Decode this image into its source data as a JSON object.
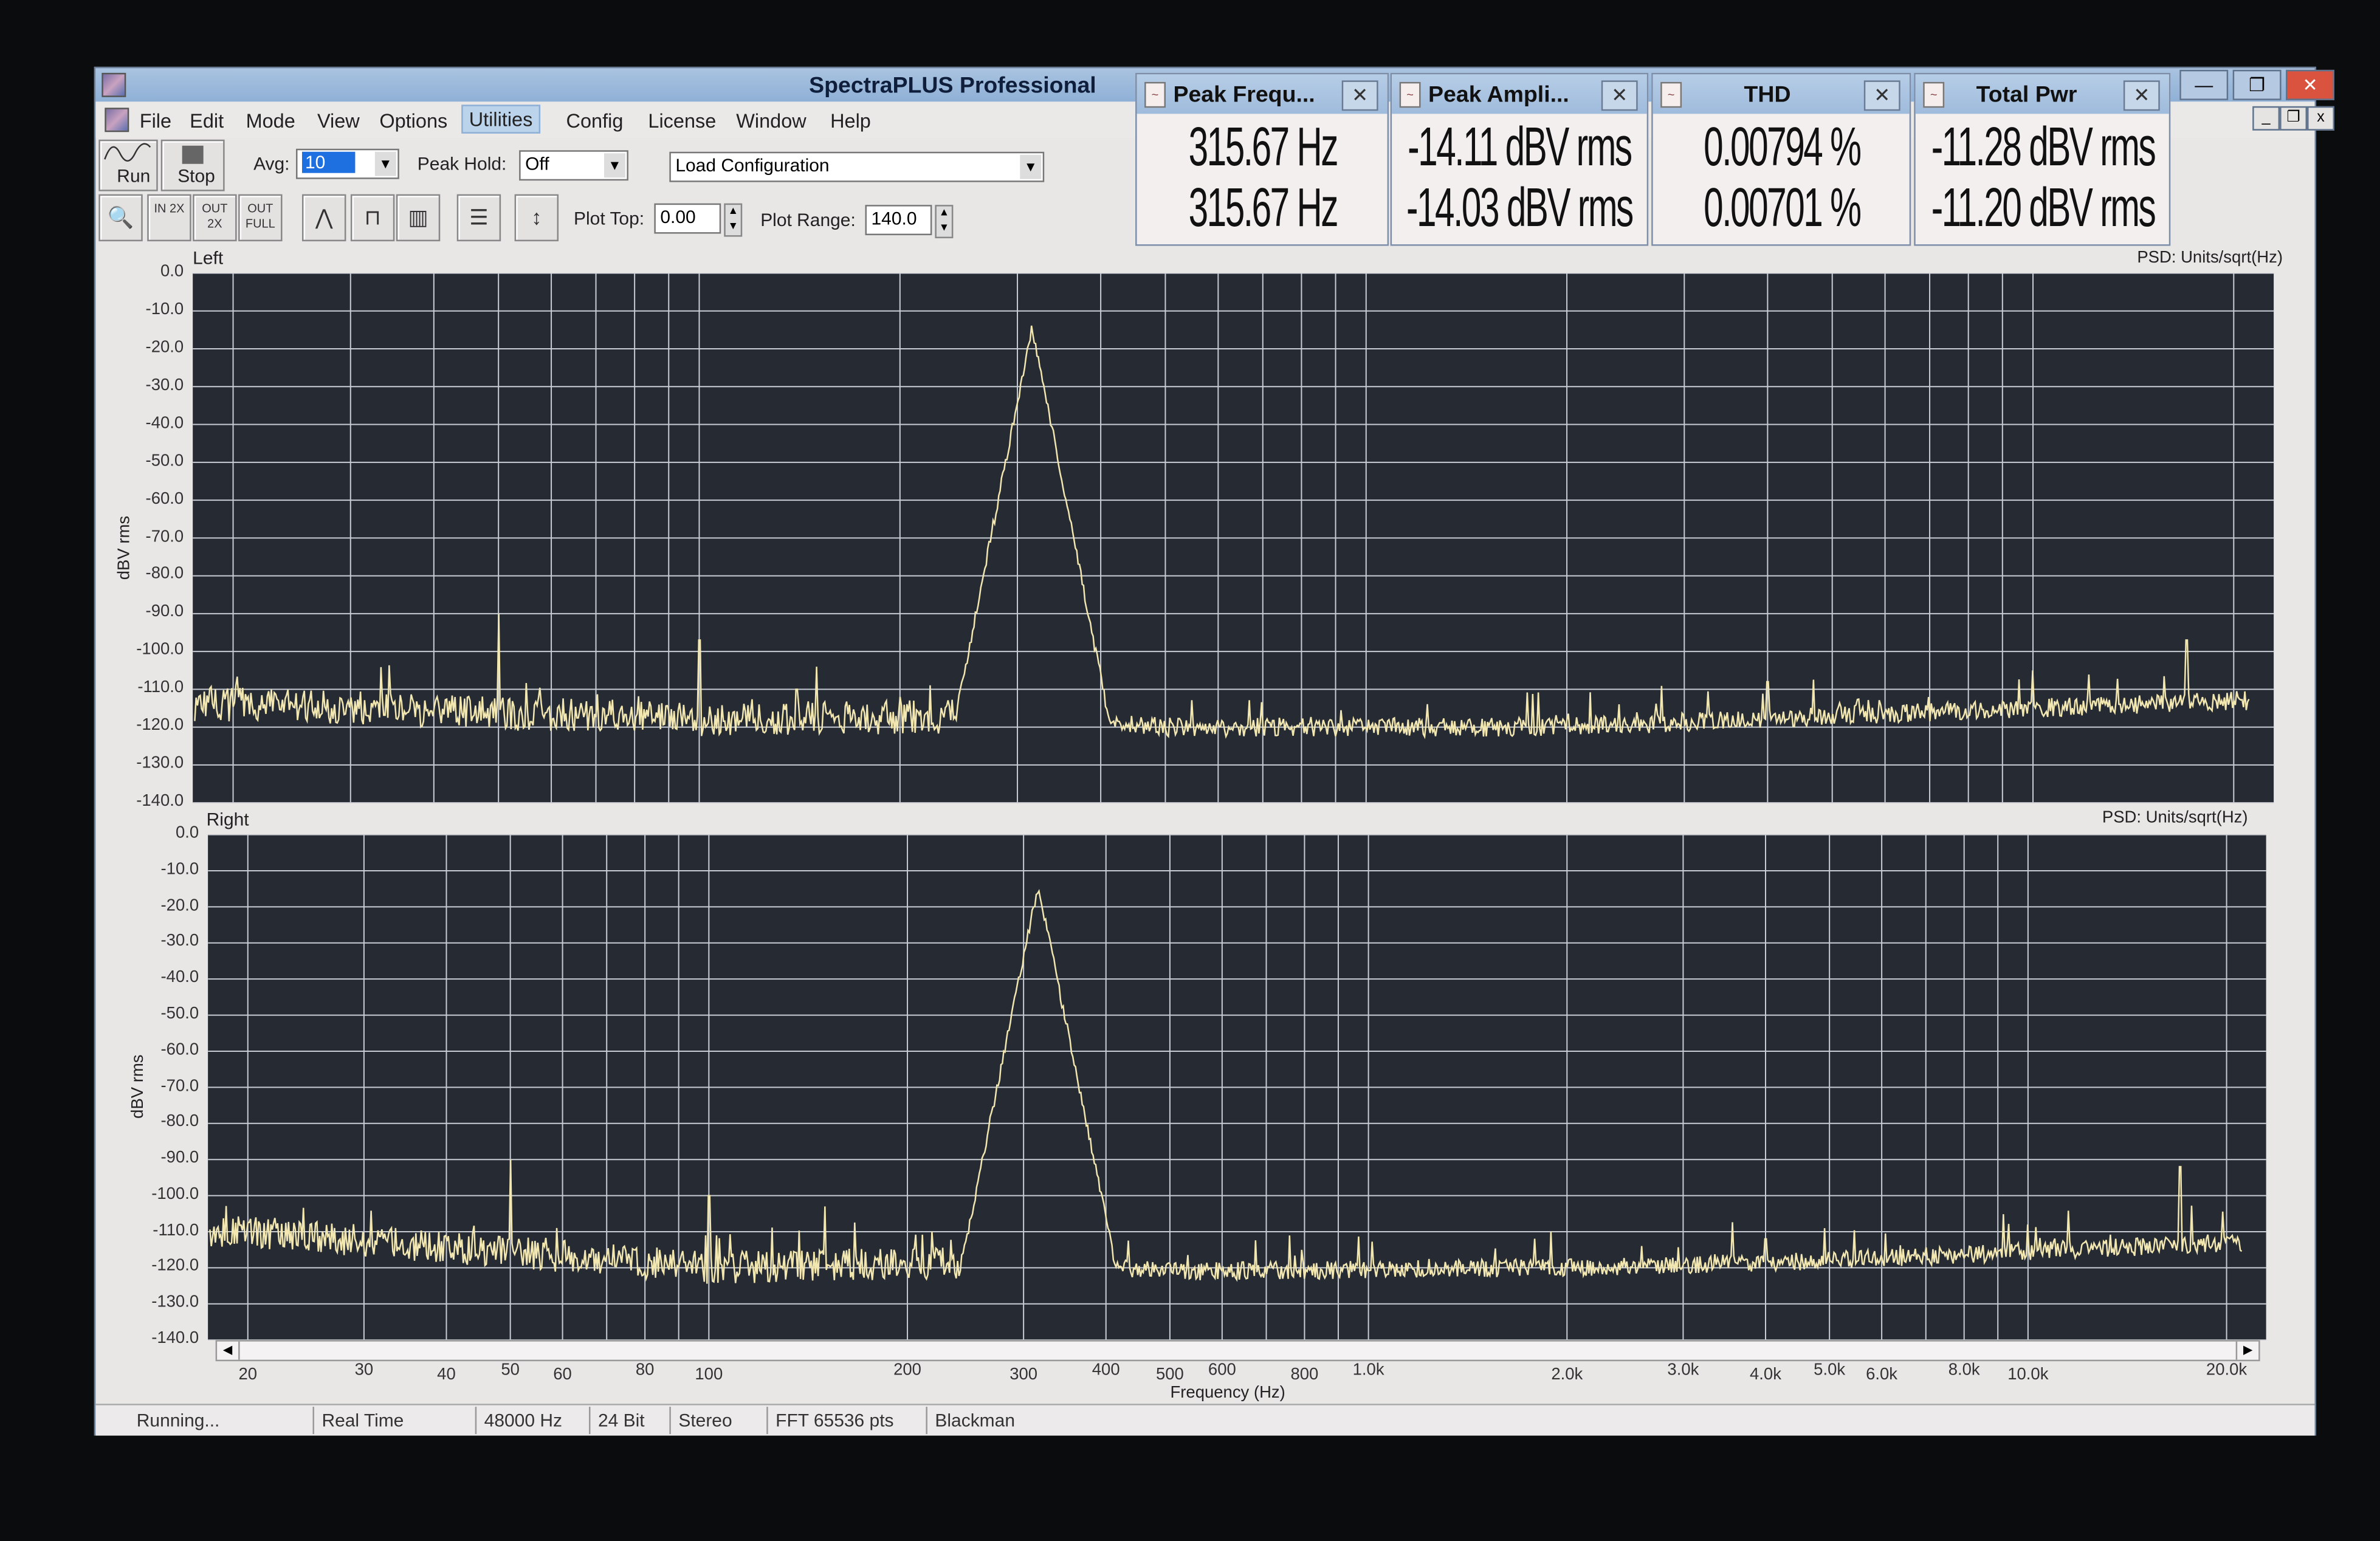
{
  "app": {
    "title": "SpectraPLUS Professional"
  },
  "menu": [
    "File",
    "Edit",
    "Mode",
    "View",
    "Options",
    "Utilities",
    "Config",
    "License",
    "Window",
    "Help"
  ],
  "menu_highlighted": "Utilities",
  "toolbar": {
    "run_label": "Run",
    "stop_label": "Stop",
    "avg_label": "Avg:",
    "avg_value": "10",
    "peak_hold_label": "Peak Hold:",
    "peak_hold_value": "Off",
    "config_value": "Load Configuration",
    "plot_top_label": "Plot Top:",
    "plot_top_value": "0.00",
    "plot_range_label": "Plot Range:",
    "plot_range_value": "140.0",
    "zoom_in_label": "IN 2X",
    "zoom_out_label": "OUT 2X",
    "zoom_full_label": "OUT FULL",
    "icons": [
      "magnifier-icon",
      "zoom-in-icon",
      "zoom-out-icon",
      "zoom-full-icon",
      "line-plot-icon",
      "step-plot-icon",
      "bar-plot-icon",
      "layout-icon",
      "scale-icon"
    ]
  },
  "meters": [
    {
      "title": "Peak Frequ...",
      "left": "315.67 Hz",
      "right": "315.67 Hz"
    },
    {
      "title": "Peak Ampli...",
      "left": "-14.11 dBV rms",
      "right": "-14.03 dBV rms"
    },
    {
      "title": "THD",
      "left": "0.00794 %",
      "right": "0.00701 %"
    },
    {
      "title": "Total Pwr",
      "left": "-11.28 dBV rms",
      "right": "-11.20 dBV rms"
    }
  ],
  "plots": {
    "top": {
      "channel": "Left",
      "psd_label": "PSD: Units/sqrt(Hz)",
      "ylabel": "dBV rms"
    },
    "bottom": {
      "channel": "Right",
      "psd_label": "PSD: Units/sqrt(Hz)",
      "ylabel": "dBV rms"
    },
    "xlabel": "Frequency (Hz)",
    "y_tick_labels": [
      "0.0",
      "-10.0",
      "-20.0",
      "-30.0",
      "-40.0",
      "-50.0",
      "-60.0",
      "-70.0",
      "-80.0",
      "-90.0",
      "-100.0",
      "-110.0",
      "-120.0",
      "-130.0",
      "-140.0"
    ],
    "x_ticks": [
      {
        "f": 20,
        "label": "20"
      },
      {
        "f": 30,
        "label": "30"
      },
      {
        "f": 40,
        "label": "40"
      },
      {
        "f": 50,
        "label": "50"
      },
      {
        "f": 60,
        "label": "60"
      },
      {
        "f": 80,
        "label": "80"
      },
      {
        "f": 100,
        "label": "100"
      },
      {
        "f": 200,
        "label": "200"
      },
      {
        "f": 300,
        "label": "300"
      },
      {
        "f": 400,
        "label": "400"
      },
      {
        "f": 500,
        "label": "500"
      },
      {
        "f": 600,
        "label": "600"
      },
      {
        "f": 800,
        "label": "800"
      },
      {
        "f": 1000,
        "label": "1.0k"
      },
      {
        "f": 2000,
        "label": "2.0k"
      },
      {
        "f": 3000,
        "label": "3.0k"
      },
      {
        "f": 4000,
        "label": "4.0k"
      },
      {
        "f": 5000,
        "label": "5.0k"
      },
      {
        "f": 6000,
        "label": "6.0k"
      },
      {
        "f": 8000,
        "label": "8.0k"
      },
      {
        "f": 10000,
        "label": "10.0k"
      },
      {
        "f": 20000,
        "label": "20.0k"
      }
    ]
  },
  "chart_data": [
    {
      "type": "line",
      "title": "Left",
      "xlabel": "Frequency (Hz)",
      "ylabel": "dBV rms",
      "x_scale": "log",
      "xlim": [
        17.4,
        22960
      ],
      "ylim": [
        -140,
        0
      ],
      "grid": true,
      "fundamental": {
        "f": 315.67,
        "db": -14.1
      },
      "spurs": [
        [
          50,
          -90
        ],
        [
          100,
          -97
        ],
        [
          150,
          -104
        ],
        [
          140,
          -110
        ],
        [
          250,
          -110
        ],
        [
          200,
          -112
        ],
        [
          4000,
          -108
        ],
        [
          10000,
          -105
        ],
        [
          17000,
          -97
        ]
      ],
      "noise_floor": [
        [
          20,
          -114
        ],
        [
          100,
          -118
        ],
        [
          300,
          -117
        ],
        [
          500,
          -120
        ],
        [
          2000,
          -120
        ],
        [
          5000,
          -117
        ],
        [
          20000,
          -113
        ]
      ]
    },
    {
      "type": "line",
      "title": "Right",
      "xlabel": "Frequency (Hz)",
      "ylabel": "dBV rms",
      "x_scale": "log",
      "xlim": [
        17.4,
        22960
      ],
      "ylim": [
        -140,
        0
      ],
      "grid": true,
      "fundamental": {
        "f": 315.67,
        "db": -14.0
      },
      "spurs": [
        [
          50,
          -90
        ],
        [
          100,
          -100
        ],
        [
          150,
          -103
        ],
        [
          250,
          -108
        ],
        [
          4000,
          -112
        ],
        [
          10000,
          -108
        ],
        [
          17000,
          -92
        ]
      ],
      "noise_floor": [
        [
          20,
          -110
        ],
        [
          100,
          -120
        ],
        [
          300,
          -118
        ],
        [
          500,
          -121
        ],
        [
          2000,
          -120
        ],
        [
          5000,
          -118
        ],
        [
          20000,
          -113
        ]
      ]
    }
  ],
  "status": [
    "Running...",
    "Real Time",
    "48000 Hz",
    "24 Bit",
    "Stereo",
    "FFT 65536 pts",
    "Blackman"
  ],
  "colors": {
    "plot_bg": "#262a33",
    "grid": "#c8ccd4",
    "trace": "#f2e7b0",
    "titlebar": "#9fbbdc",
    "close": "#d9533f"
  }
}
